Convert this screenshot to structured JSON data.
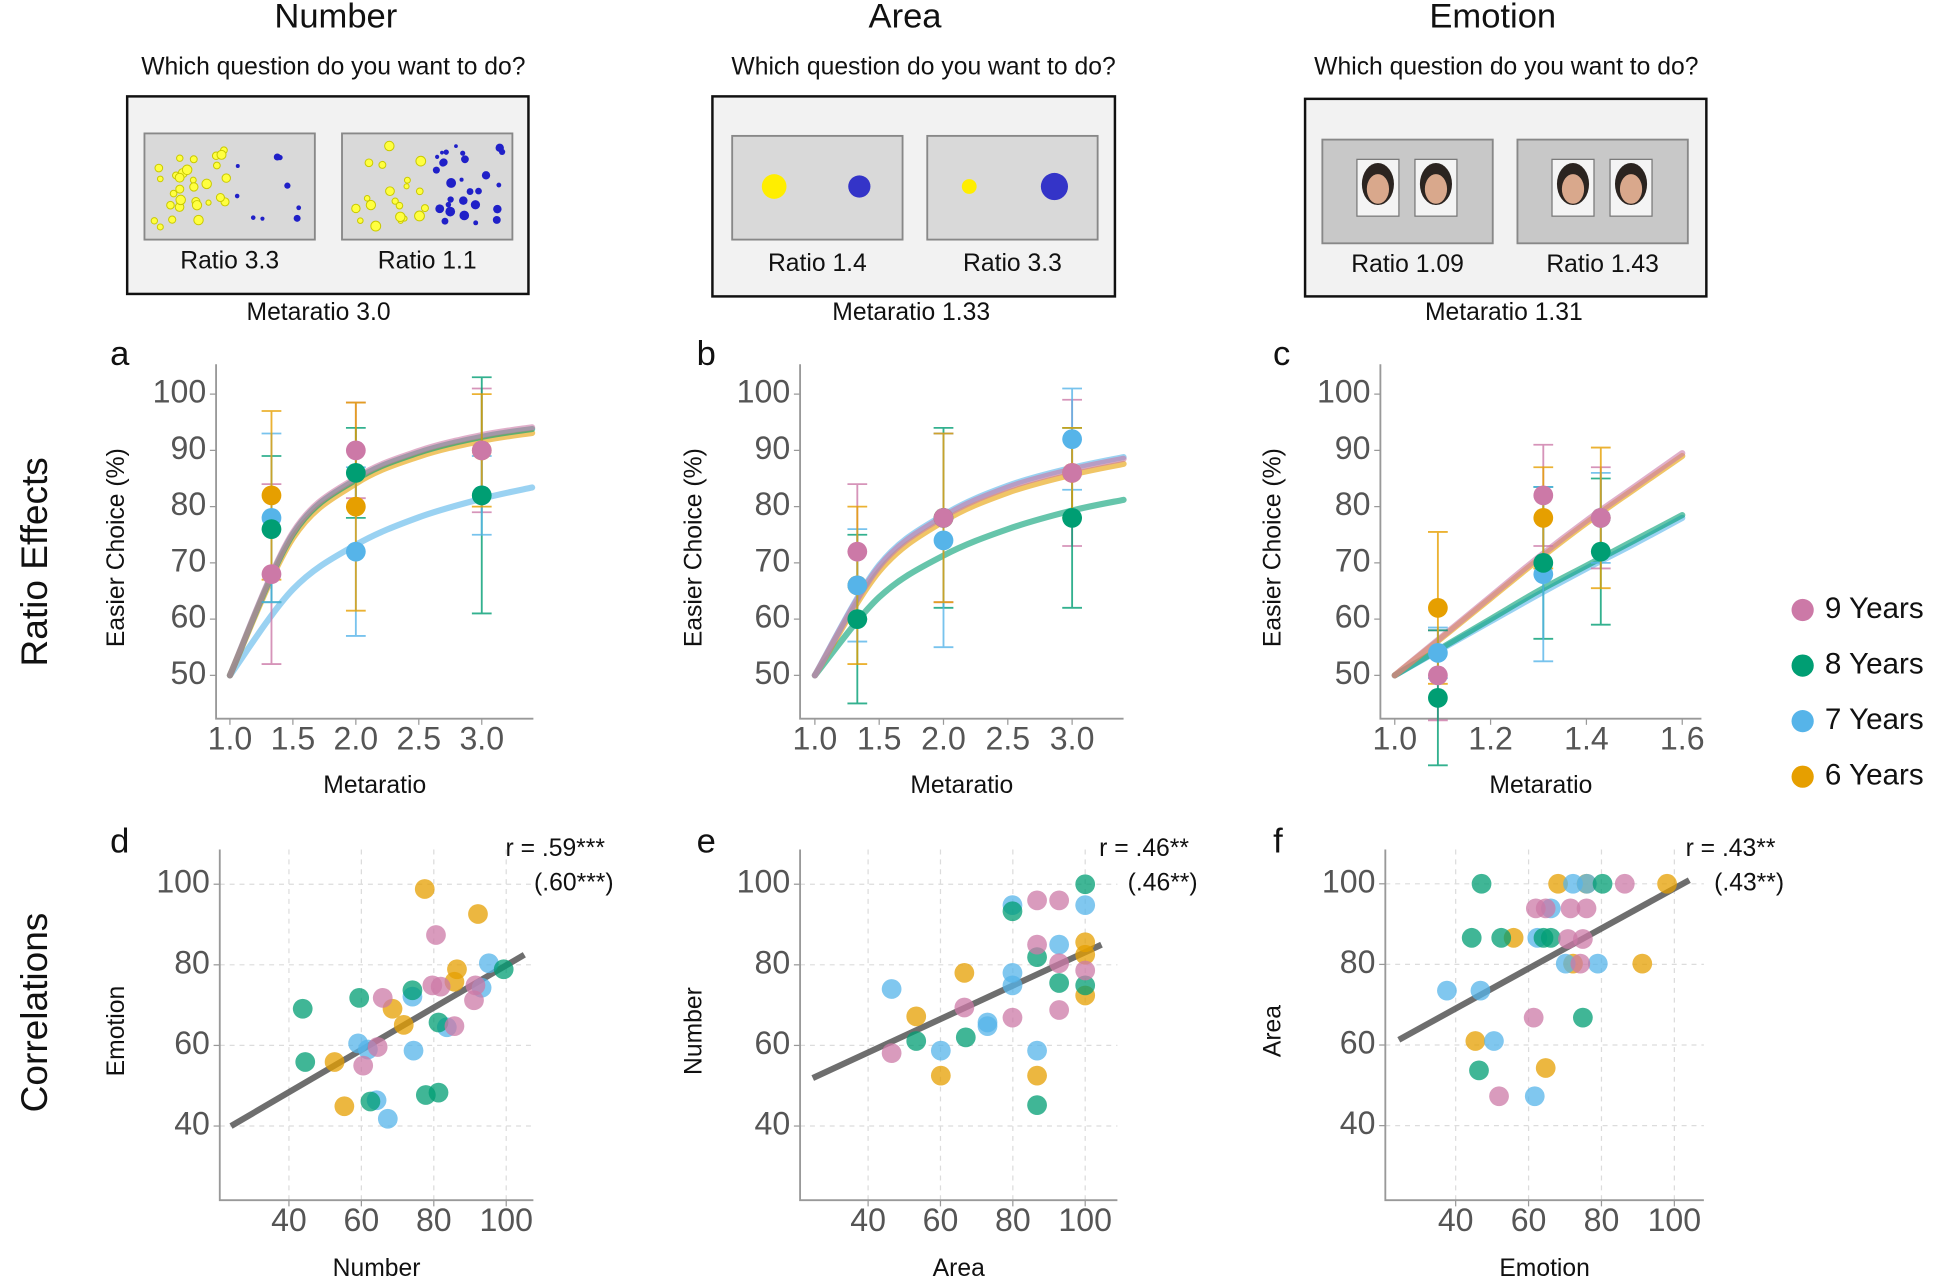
{
  "tasks": [
    {
      "title": "Number",
      "question": "Which question do you want to do?",
      "options": [
        "Ratio 3.3",
        "Ratio 1.1"
      ],
      "metaratio": "Metaratio 3.0"
    },
    {
      "title": "Area",
      "question": "Which question do you want to do?",
      "options": [
        "Ratio 1.4",
        "Ratio 3.3"
      ],
      "metaratio": "Metaratio 1.33"
    },
    {
      "title": "Emotion",
      "question": "Which question do you want to do?",
      "options": [
        "Ratio 1.09",
        "Ratio 1.43"
      ],
      "metaratio": "Metaratio 1.31"
    }
  ],
  "row_labels": [
    "Ratio Effects",
    "Correlations"
  ],
  "legend": [
    {
      "name": "9 Years",
      "color": "#cc79a7"
    },
    {
      "name": "8 Years",
      "color": "#009e73"
    },
    {
      "name": "7 Years",
      "color": "#56b4e9"
    },
    {
      "name": "6 Years",
      "color": "#e69f00"
    }
  ],
  "chart_data": [
    {
      "type": "errorbar",
      "label": "a",
      "xlabel": "Metaratio",
      "ylabel": "Easier Choice (%)",
      "grid": false,
      "x": [
        1.33,
        2,
        3
      ],
      "xlim": [
        0.89,
        3.41
      ],
      "ylim": [
        42.3,
        105.3
      ],
      "xticks": [
        {
          "value": 1,
          "label": "1.0"
        },
        1.5,
        {
          "value": 2,
          "label": "2.0"
        },
        2.5,
        {
          "value": 3,
          "label": "3.0"
        }
      ],
      "yticks": [
        50,
        60,
        70,
        80,
        90,
        100
      ],
      "series": [
        {
          "color": "#cc79a7",
          "values": [
            68,
            90,
            90
          ],
          "errors": [
            16,
            8.5,
            11
          ]
        },
        {
          "color": "#009e73",
          "values": [
            76,
            86,
            82
          ],
          "errors": [
            13,
            8,
            21
          ]
        },
        {
          "color": "#56b4e9",
          "values": [
            78,
            72,
            82
          ],
          "errors": [
            15,
            15,
            7
          ]
        },
        {
          "color": "#e69f00",
          "values": [
            82,
            80,
            90
          ],
          "errors": [
            15,
            18.5,
            10
          ]
        }
      ],
      "curves": [
        {
          "color": "#56b4e9",
          "x": [
            1,
            1.5,
            2,
            2.5,
            3,
            3.4
          ],
          "values": [
            50,
            65.3,
            73.2,
            78.1,
            81.4,
            83.4
          ]
        },
        {
          "color": "#e69f00",
          "x": [
            1,
            1.5,
            2,
            2.5,
            3,
            3.4
          ],
          "values": [
            50,
            74.4,
            84.1,
            88.9,
            91.7,
            93.1
          ]
        },
        {
          "color": "#009e73",
          "x": [
            1,
            1.5,
            2,
            2.5,
            3,
            3.4
          ],
          "values": [
            50,
            75.1,
            84.8,
            89.6,
            92.4,
            93.8
          ]
        },
        {
          "color": "#cc79a7",
          "x": [
            1,
            1.5,
            2,
            2.5,
            3,
            3.4
          ],
          "values": [
            50,
            75.4,
            85.1,
            89.9,
            92.7,
            94.1
          ]
        }
      ]
    },
    {
      "type": "errorbar",
      "label": "b",
      "xlabel": "Metaratio",
      "ylabel": "Easier Choice (%)",
      "grid": false,
      "x": [
        1.33,
        2,
        3
      ],
      "xlim": [
        0.885,
        3.4
      ],
      "ylim": [
        42.3,
        105.3
      ],
      "xticks": [
        {
          "value": 1,
          "label": "1.0"
        },
        1.5,
        {
          "value": 2,
          "label": "2.0"
        },
        2.5,
        {
          "value": 3,
          "label": "3.0"
        }
      ],
      "yticks": [
        50,
        60,
        70,
        80,
        90,
        100
      ],
      "series": [
        {
          "color": "#cc79a7",
          "values": [
            72,
            78,
            86
          ],
          "errors": [
            12,
            15,
            13
          ]
        },
        {
          "color": "#009e73",
          "values": [
            60,
            78,
            78
          ],
          "errors": [
            15,
            16,
            16
          ]
        },
        {
          "color": "#56b4e9",
          "values": [
            66,
            74,
            92
          ],
          "errors": [
            10,
            19,
            9
          ]
        },
        {
          "color": "#e69f00",
          "values": [
            66,
            78,
            86
          ],
          "errors": [
            14,
            15,
            8
          ]
        }
      ],
      "curves": [
        {
          "color": "#009e73",
          "x": [
            1,
            1.5,
            2,
            2.5,
            3,
            3.4
          ],
          "values": [
            50,
            63.9,
            71.3,
            76,
            79.3,
            81.2
          ]
        },
        {
          "color": "#e69f00",
          "x": [
            1,
            1.5,
            2,
            2.5,
            3,
            3.4
          ],
          "values": [
            50,
            68.5,
            77.4,
            82.5,
            85.7,
            87.6
          ]
        },
        {
          "color": "#56b4e9",
          "x": [
            1,
            1.5,
            2,
            2.5,
            3,
            3.4
          ],
          "values": [
            50,
            69.6,
            78.5,
            83.7,
            86.9,
            88.8
          ]
        },
        {
          "color": "#cc79a7",
          "x": [
            1,
            1.5,
            2,
            2.5,
            3,
            3.4
          ],
          "values": [
            50,
            69.3,
            78.2,
            83.4,
            86.6,
            88.5
          ]
        }
      ]
    },
    {
      "type": "errorbar",
      "label": "c",
      "xlabel": "Metaratio",
      "ylabel": "Easier Choice (%)",
      "grid": false,
      "x": [
        1.09,
        1.31,
        1.43
      ],
      "xlim": [
        0.97,
        1.64
      ],
      "ylim": [
        42.3,
        105.3
      ],
      "xticks": [
        {
          "value": 1,
          "label": "1.0"
        },
        1.2,
        1.4,
        1.6
      ],
      "yticks": [
        50,
        60,
        70,
        80,
        90,
        100
      ],
      "series": [
        {
          "color": "#cc79a7",
          "values": [
            50,
            82,
            78
          ],
          "errors": [
            8,
            9,
            9
          ]
        },
        {
          "color": "#009e73",
          "values": [
            46,
            70,
            72
          ],
          "errors": [
            12,
            13.5,
            13
          ]
        },
        {
          "color": "#56b4e9",
          "values": [
            54,
            68,
            78
          ],
          "errors": [
            4.5,
            15.5,
            8
          ]
        },
        {
          "color": "#e69f00",
          "values": [
            62,
            78,
            78
          ],
          "errors": [
            13.5,
            9,
            12.5
          ]
        }
      ],
      "curves": [
        {
          "color": "#56b4e9",
          "x": [
            1,
            1.1,
            1.2,
            1.3,
            1.4,
            1.5,
            1.6
          ],
          "values": [
            50,
            54.8,
            59.6,
            64.4,
            69,
            73.4,
            78
          ]
        },
        {
          "color": "#009e73",
          "x": [
            1,
            1.1,
            1.2,
            1.3,
            1.4,
            1.5,
            1.6
          ],
          "values": [
            50,
            55,
            60,
            65,
            69.5,
            74,
            78.5
          ]
        },
        {
          "color": "#e69f00",
          "x": [
            1,
            1.1,
            1.2,
            1.3,
            1.4,
            1.5,
            1.6
          ],
          "values": [
            50,
            56.8,
            63.7,
            70.6,
            77.1,
            83.1,
            89
          ]
        },
        {
          "color": "#cc79a7",
          "x": [
            1,
            1.1,
            1.2,
            1.3,
            1.4,
            1.5,
            1.6
          ],
          "values": [
            50,
            57,
            64,
            71,
            77.5,
            83.5,
            89.5
          ]
        }
      ]
    },
    {
      "type": "scatter",
      "label": "d",
      "xlabel": "Number",
      "ylabel": "Emotion",
      "grid": true,
      "xlim": [
        20.9,
        107.5
      ],
      "ylim": [
        21.6,
        108.6
      ],
      "xticks": [
        40,
        60,
        80,
        100
      ],
      "yticks": [
        40,
        60,
        80,
        100
      ],
      "annotations": [
        "r = .59***",
        "(.60***)"
      ],
      "series": [
        {
          "color": "#e69f00",
          "x": [
            77.5,
            92.2,
            86.4,
            68.6,
            71.7,
            52.6,
            55.3,
            85.7
          ],
          "values": [
            98.8,
            92.6,
            78.9,
            69.1,
            65.1,
            55.9,
            44.9,
            75.8
          ]
        },
        {
          "color": "#56b4e9",
          "x": [
            59.1,
            67.3,
            64.2,
            74.4,
            74.1,
            83.6,
            95.2,
            61.8,
            93.2
          ],
          "values": [
            60.5,
            41.8,
            46.4,
            58.7,
            72.1,
            64.5,
            80.4,
            59,
            74.3
          ]
        },
        {
          "color": "#009e73",
          "x": [
            43.8,
            44.5,
            59.4,
            74.1,
            81.3,
            77.8,
            81.3,
            62.5,
            99.3
          ],
          "values": [
            69.1,
            55.9,
            71.8,
            73.7,
            65.7,
            47.7,
            48.3,
            46.1,
            78.9
          ]
        },
        {
          "color": "#cc79a7",
          "x": [
            80.6,
            65.9,
            64.5,
            60.5,
            79.6,
            85.7,
            91.1,
            91.5,
            81.9
          ],
          "values": [
            87.4,
            71.8,
            59.6,
            55,
            74.9,
            64.8,
            71.2,
            74.9,
            74.6
          ]
        }
      ],
      "fit": {
        "color": "#555555",
        "x": [
          24,
          105
        ],
        "values": [
          40,
          82.5
        ]
      }
    },
    {
      "type": "scatter",
      "label": "e",
      "xlabel": "Area",
      "ylabel": "Number",
      "grid": true,
      "xlim": [
        21.2,
        108.9
      ],
      "ylim": [
        21.6,
        108.6
      ],
      "xticks": [
        40,
        60,
        80,
        100
      ],
      "yticks": [
        40,
        60,
        80,
        100
      ],
      "annotations": [
        "r = .46**",
        "(.46**)"
      ],
      "series": [
        {
          "color": "#e69f00",
          "x": [
            53.3,
            60.1,
            66.6,
            86.7,
            100,
            100,
            100
          ],
          "values": [
            67.2,
            52.5,
            78,
            52.5,
            72.4,
            85.6,
            82.5
          ]
        },
        {
          "color": "#56b4e9",
          "x": [
            46.5,
            60.1,
            73,
            79.9,
            79.9,
            86.7,
            92.8,
            100,
            73,
            79.9
          ],
          "values": [
            74,
            58.7,
            64.8,
            74.9,
            94.8,
            58.7,
            85,
            94.8,
            65.7,
            78
          ]
        },
        {
          "color": "#009e73",
          "x": [
            53.3,
            67,
            79.9,
            86.7,
            86.7,
            92.8,
            100,
            100
          ],
          "values": [
            61.1,
            62,
            93.3,
            81.9,
            45.2,
            75.5,
            100,
            74.9
          ]
        },
        {
          "color": "#cc79a7",
          "x": [
            46.5,
            66.6,
            79.9,
            86.7,
            92.8,
            92.8,
            92.8,
            100,
            86.7
          ],
          "values": [
            58.1,
            69.4,
            66.9,
            96,
            96,
            80.4,
            68.8,
            78.6,
            85
          ]
        }
      ],
      "fit": {
        "color": "#555555",
        "x": [
          24.7,
          104.5
        ],
        "values": [
          51.9,
          85
        ]
      }
    },
    {
      "type": "scatter",
      "label": "f",
      "xlabel": "Emotion",
      "ylabel": "Area",
      "grid": true,
      "xlim": [
        20.7,
        108.1
      ],
      "ylim": [
        21.5,
        108.5
      ],
      "xticks": [
        40,
        60,
        80,
        100
      ],
      "yticks": [
        40,
        60,
        80,
        100
      ],
      "annotations": [
        "r = .43**",
        "(.43**)"
      ],
      "series": [
        {
          "color": "#e69f00",
          "x": [
            45.4,
            55.9,
            68.1,
            75.9,
            64.7,
            98,
            91.2,
            72.2
          ],
          "values": [
            61,
            86.6,
            100,
            100,
            54.3,
            100,
            80.2,
            80.2
          ]
        },
        {
          "color": "#56b4e9",
          "x": [
            37.6,
            46.8,
            50.5,
            61.7,
            66.1,
            72.2,
            79,
            70.2,
            62.4,
            76
          ],
          "values": [
            73.5,
            73.5,
            61,
            47.3,
            93.9,
            100,
            80.2,
            80.2,
            86.6,
            100
          ]
        },
        {
          "color": "#009e73",
          "x": [
            47.1,
            44.4,
            52.5,
            64.1,
            66.1,
            80.3,
            74.9,
            46.4
          ],
          "values": [
            100,
            86.6,
            86.6,
            86.6,
            86.6,
            100,
            66.8,
            53.7
          ]
        },
        {
          "color": "#cc79a7",
          "x": [
            62,
            64.7,
            71.5,
            75.9,
            86.4,
            61.4,
            51.9,
            74.2,
            70.8,
            74.9
          ],
          "values": [
            93.9,
            93.9,
            93.9,
            93.9,
            100,
            66.8,
            47.3,
            80.2,
            86.3,
            86.3
          ]
        }
      ],
      "fit": {
        "color": "#555555",
        "x": [
          24.4,
          104.1
        ],
        "values": [
          61.3,
          100.9
        ]
      }
    }
  ]
}
